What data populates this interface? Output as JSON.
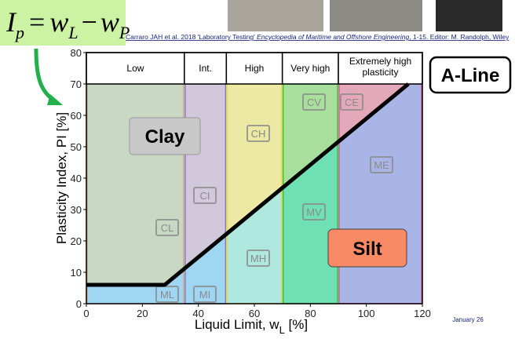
{
  "formula": [
    {
      "text": "I",
      "sub": "p"
    },
    {
      "text": "="
    },
    {
      "text": "w",
      "sub": "L"
    },
    {
      "text": "−"
    },
    {
      "text": "w",
      "sub": "P"
    }
  ],
  "citation": [
    "Carraro JAH et al. 2018 'Laboratory Testing' ",
    "Encyclopedia of Maritime and Offshore Engineering",
    ", 1-15.  Editor: M. Randolph, Wiley"
  ],
  "date": "January 26",
  "chart_data": {
    "type": "plasticity",
    "x_label": {
      "main": "Liquid Limit, w",
      "sub": "L",
      "unit": " [%]"
    },
    "y_label": "Plasticity Index, PI [%]",
    "xlim": [
      0,
      120
    ],
    "ylim": [
      0,
      80
    ],
    "xticks": [
      0,
      20,
      40,
      60,
      80,
      100,
      120
    ],
    "yticks": [
      0,
      10,
      20,
      30,
      40,
      50,
      60,
      70,
      80
    ],
    "zones": [
      {
        "name": "Low",
        "from": 0,
        "to": 35,
        "color": "#c9d8c2",
        "lower_color": "#9fd6f2",
        "border": "#c9a98a"
      },
      {
        "name": "Int.",
        "from": 35,
        "to": 50,
        "color": "#d1c8dc",
        "lower_color": "#9fd6f2",
        "border": "#8a7bb8"
      },
      {
        "name": "High",
        "from": 50,
        "to": 70,
        "color": "#ece9a4",
        "lower_color": "#aee8df",
        "border": "#e6d84a"
      },
      {
        "name": "Very high",
        "from": 70,
        "to": 90,
        "color": "#a9df9c",
        "lower_color": "#6fe0b4",
        "border": "#3cc23c"
      },
      {
        "name": "Extremely high plasticity",
        "from": 90,
        "to": 120,
        "color": "#e3a9ba",
        "lower_color": "#a9b5e6",
        "border": "#e0609a"
      }
    ],
    "groups": [
      "CL",
      "ML",
      "CI",
      "MI",
      "CH",
      "MH",
      "CV",
      "MV",
      "CE",
      "ME"
    ],
    "a_line": {
      "name": "A-Line",
      "x": [
        0,
        28,
        115
      ],
      "y": [
        6,
        6,
        70
      ]
    },
    "clay_label": "Clay",
    "silt_label": "Silt"
  }
}
